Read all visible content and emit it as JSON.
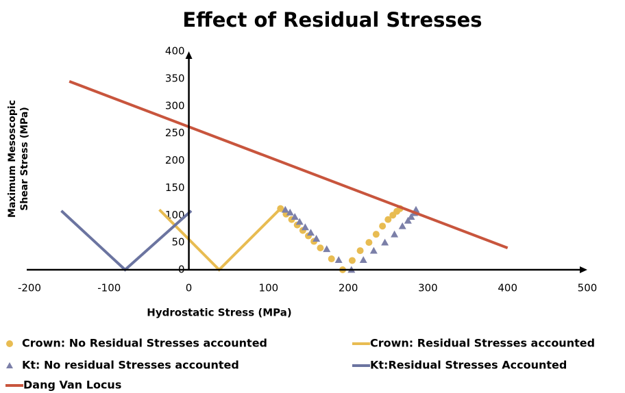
{
  "chart_data": {
    "type": "scatter",
    "title": "Effect of Residual Stresses",
    "xlabel": "Hydrostatic Stress (MPa)",
    "ylabel": [
      "Maximum Mesoscopic",
      "Shear Stress (MPa)"
    ],
    "xlim": [
      -200,
      500
    ],
    "ylim": [
      0,
      400
    ],
    "xticks": [
      -200,
      -100,
      0,
      100,
      200,
      300,
      400,
      500
    ],
    "yticks": [
      0,
      50,
      100,
      150,
      200,
      250,
      300,
      350,
      400
    ],
    "grid": false,
    "series": [
      {
        "name": "Crown: No Residual Stresses accounted",
        "color": "#e8bc52",
        "mode": "markers",
        "marker": "circle",
        "x": [
          115,
          122,
          129,
          136,
          143,
          150,
          157,
          165,
          179,
          193,
          205,
          215,
          226,
          235,
          243,
          250,
          256,
          261,
          265
        ],
        "values": [
          112,
          102,
          92,
          82,
          72,
          62,
          52,
          40,
          20,
          0,
          17,
          35,
          50,
          65,
          80,
          92,
          100,
          107,
          112
        ]
      },
      {
        "name": "Crown: Residual Stresses accounted",
        "color": "#e8bc52",
        "mode": "line",
        "x": [
          -37,
          38,
          115
        ],
        "values": [
          110,
          0,
          112
        ]
      },
      {
        "name": "Kt: No residual Stresses accounted",
        "color": "#7b7fa8",
        "mode": "markers",
        "marker": "triangle",
        "x": [
          121,
          127,
          133,
          139,
          146,
          153,
          160,
          173,
          188,
          204,
          219,
          232,
          246,
          258,
          268,
          275,
          279,
          283,
          285
        ],
        "values": [
          110,
          105,
          97,
          88,
          78,
          68,
          57,
          38,
          18,
          0,
          18,
          35,
          50,
          65,
          80,
          90,
          97,
          104,
          110
        ]
      },
      {
        "name": "Kt:Residual Stresses Accounted",
        "color": "#6b74a0",
        "mode": "line",
        "x": [
          -160,
          -80,
          3
        ],
        "values": [
          108,
          0,
          108
        ]
      },
      {
        "name": "Dang Van Locus",
        "color": "#c8553d",
        "mode": "line",
        "x": [
          -150,
          400
        ],
        "values": [
          345,
          40
        ]
      }
    ]
  }
}
